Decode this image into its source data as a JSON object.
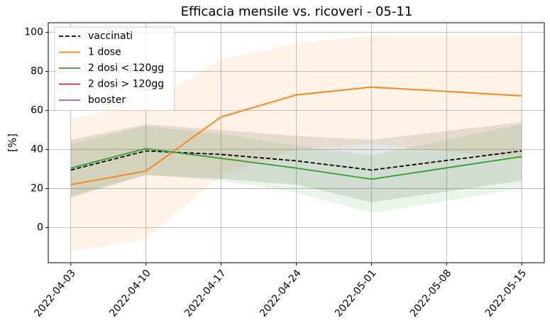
{
  "chart_data": {
    "type": "line",
    "title": "Efficacia mensile vs. ricoveri - 05-11",
    "ylabel": "[%]",
    "x": [
      "2022-04-03",
      "2022-04-10",
      "2022-04-17",
      "2022-04-24",
      "2022-05-01",
      "2022-05-08",
      "2022-05-15"
    ],
    "xticks": [
      "2022-04-03",
      "2022-04-10",
      "2022-04-17",
      "2022-04-24",
      "2022-05-01",
      "2022-05-08",
      "2022-05-15"
    ],
    "xlim": [
      "2022-03-31T21:36",
      "2022-05-17T02:24"
    ],
    "ylim": [
      -18,
      105
    ],
    "yticks": [
      0,
      20,
      40,
      60,
      80,
      100
    ],
    "grid": true,
    "legend": "upper left",
    "series": [
      {
        "name": "vaccinati",
        "color": "#000000",
        "dash": true,
        "values": [
          29.5,
          39.3,
          37.5,
          34.2,
          29.5,
          34.4,
          39.3
        ],
        "lower": [
          16,
          27,
          25,
          22,
          13,
          18.5,
          24
        ],
        "upper": [
          45,
          53,
          50,
          47,
          45,
          49.5,
          54
        ]
      },
      {
        "name": "1 dose",
        "color": "#ff7f0e",
        "values": [
          22,
          29,
          56.7,
          68,
          72,
          69.8,
          67.5
        ],
        "lower": [
          -12.5,
          -6,
          27,
          40,
          43,
          39,
          35
        ],
        "upper": [
          56,
          63,
          86,
          94.5,
          98.5,
          98.5,
          98.5
        ]
      },
      {
        "name": "2 dosi < 120gg",
        "color": "#2ca02c",
        "values": [
          30.5,
          40.5,
          35.5,
          30.5,
          24.8,
          30.6,
          36.4
        ],
        "lower": [
          15,
          27,
          24,
          18,
          7.5,
          13.7,
          20
        ],
        "upper": [
          43,
          52,
          48,
          42,
          37,
          45,
          53
        ]
      },
      {
        "name": "2 dosi > 120gg",
        "color": "#d62728",
        "values": [
          null,
          null,
          null,
          null,
          null,
          null,
          null
        ]
      },
      {
        "name": "booster",
        "color": "#9467bd",
        "values": [
          null,
          null,
          null,
          null,
          null,
          null,
          null
        ]
      }
    ]
  }
}
